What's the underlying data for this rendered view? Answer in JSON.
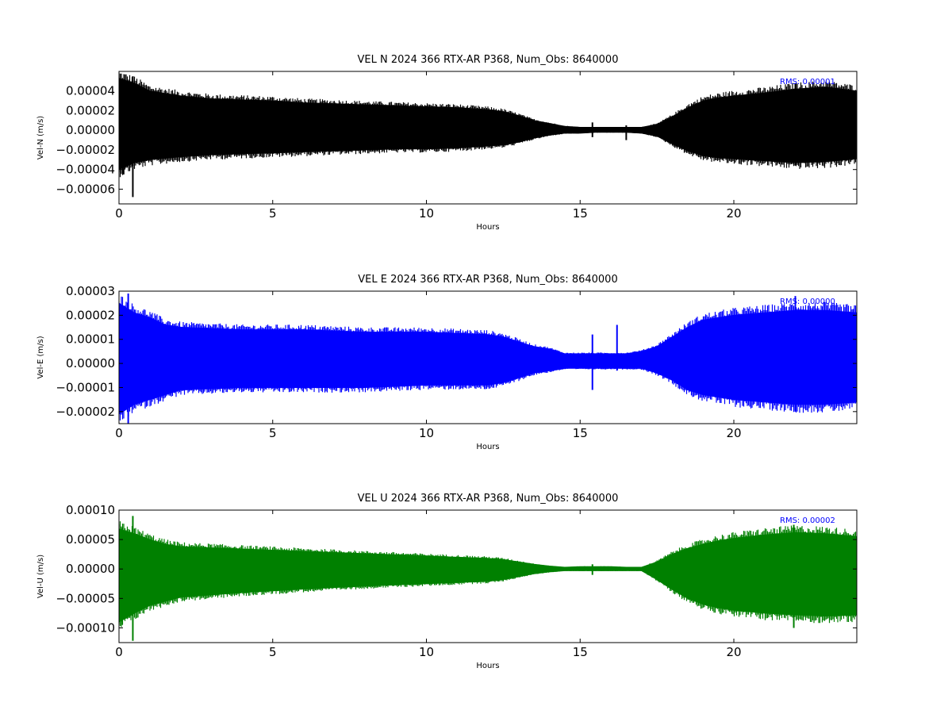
{
  "chart_data": [
    {
      "type": "line",
      "title": "VEL N 2024 366 RTX-AR  P368, Num_Obs: 8640000",
      "xlabel": "Hours",
      "ylabel": "Vel-N (m/s)",
      "xlim": [
        0,
        24
      ],
      "ylim": [
        -7.5e-05,
        6e-05
      ],
      "xticks": [
        0,
        5,
        10,
        15,
        20
      ],
      "xtick_labels": [
        "0",
        "5",
        "10",
        "15",
        "20"
      ],
      "yticks": [
        4e-05,
        2e-05,
        0.0,
        -2e-05,
        -4e-05,
        -6e-05
      ],
      "ytick_labels": [
        "0.00004",
        "0.00002",
        "0.00000",
        "−0.00002",
        "−0.00004",
        "−0.00006"
      ],
      "annotation": "RMS:  0.00001",
      "annotation_color": "#0000ff",
      "series": [
        {
          "color": "#000000",
          "x": [
            0,
            0.5,
            1,
            2,
            3,
            4,
            5,
            6,
            7,
            8,
            9,
            10,
            11,
            12,
            12.5,
            13,
            13.5,
            14,
            14.5,
            15,
            15.5,
            16,
            16.5,
            17,
            17.5,
            18,
            18.5,
            19,
            19.5,
            20,
            21,
            22,
            23,
            24
          ],
          "upper": [
            5.3e-05,
            4.8e-05,
            4e-05,
            3.5e-05,
            3.2e-05,
            3.1e-05,
            3e-05,
            2.8e-05,
            2.7e-05,
            2.6e-05,
            2.5e-05,
            2.4e-05,
            2.3e-05,
            2.1e-05,
            1.9e-05,
            1.5e-05,
            1e-05,
            7e-06,
            4e-06,
            3e-06,
            3e-06,
            3e-06,
            3e-06,
            3e-06,
            6e-06,
            1.4e-05,
            2.3e-05,
            3e-05,
            3.3e-05,
            3.5e-05,
            3.8e-05,
            4.2e-05,
            4.4e-05,
            4e-05
          ],
          "lower": [
            -4e-05,
            -3.3e-05,
            -3e-05,
            -2.7e-05,
            -2.5e-05,
            -2.4e-05,
            -2.3e-05,
            -2.2e-05,
            -2.1e-05,
            -2e-05,
            -1.9e-05,
            -1.9e-05,
            -1.8e-05,
            -1.6e-05,
            -1.5e-05,
            -1.2e-05,
            -8e-06,
            -5e-06,
            -3e-06,
            -3e-06,
            -2e-06,
            -2e-06,
            -2e-06,
            -3e-06,
            -6e-06,
            -1.4e-05,
            -2.1e-05,
            -2.6e-05,
            -2.8e-05,
            -2.9e-05,
            -3.1e-05,
            -3.3e-05,
            -3.2e-05,
            -2.9e-05
          ]
        }
      ],
      "spikes": [
        {
          "x": 0.45,
          "y_min": -6.8e-05,
          "y_max": 5.5e-05
        },
        {
          "x": 0.15,
          "y_min": -4.5e-05,
          "y_max": 5.2e-05
        },
        {
          "x": 15.4,
          "y_min": -7e-06,
          "y_max": 8e-06
        },
        {
          "x": 16.5,
          "y_min": -1e-05,
          "y_max": 5e-06
        },
        {
          "x": 22.0,
          "y_min": -3.6e-05,
          "y_max": 4.8e-05
        }
      ]
    },
    {
      "type": "line",
      "title": "VEL E 2024 366 RTX-AR  P368, Num_Obs: 8640000",
      "xlabel": "Hours",
      "ylabel": "Vel-E (m/s)",
      "xlim": [
        0,
        24
      ],
      "ylim": [
        -2.5e-05,
        3e-05
      ],
      "xticks": [
        0,
        5,
        10,
        15,
        20
      ],
      "xtick_labels": [
        "0",
        "5",
        "10",
        "15",
        "20"
      ],
      "yticks": [
        3e-05,
        2e-05,
        1e-05,
        0.0,
        -1e-05,
        -2e-05
      ],
      "ytick_labels": [
        "0.00003",
        "0.00002",
        "0.00001",
        "0.00000",
        "−0.00001",
        "−0.00002"
      ],
      "annotation": "RMS:  0.00000",
      "annotation_color": "#0000ff",
      "series": [
        {
          "color": "#0000ff",
          "x": [
            0,
            0.5,
            1,
            1.5,
            2,
            4,
            6,
            8,
            10,
            12,
            12.5,
            13,
            13.5,
            14,
            14.5,
            15,
            16,
            16.5,
            17,
            17.5,
            18,
            18.5,
            19,
            19.5,
            20,
            21,
            22,
            23,
            24
          ],
          "upper": [
            2.5e-05,
            2.1e-05,
            1.9e-05,
            1.6e-05,
            1.5e-05,
            1.4e-05,
            1.4e-05,
            1.3e-05,
            1.3e-05,
            1.2e-05,
            1.1e-05,
            9e-06,
            7e-06,
            6e-06,
            4e-06,
            4e-06,
            4e-06,
            4e-06,
            5e-06,
            7e-06,
            1.1e-05,
            1.5e-05,
            1.8e-05,
            1.9e-05,
            2e-05,
            2.1e-05,
            2.2e-05,
            2.2e-05,
            2.1e-05
          ],
          "lower": [
            -2.1e-05,
            -1.7e-05,
            -1.5e-05,
            -1.3e-05,
            -1.1e-05,
            -1e-05,
            -1e-05,
            -1e-05,
            -9e-06,
            -9e-06,
            -8e-06,
            -6e-06,
            -4e-06,
            -3e-06,
            -2e-06,
            -2e-06,
            -2e-06,
            -2e-06,
            -2e-06,
            -4e-06,
            -7e-06,
            -1.1e-05,
            -1.3e-05,
            -1.4e-05,
            -1.5e-05,
            -1.6e-05,
            -1.7e-05,
            -1.7e-05,
            -1.6e-05
          ]
        }
      ],
      "spikes": [
        {
          "x": 0.3,
          "y_min": -2.5e-05,
          "y_max": 2.9e-05
        },
        {
          "x": 15.4,
          "y_min": -1.1e-05,
          "y_max": 1.2e-05
        },
        {
          "x": 16.2,
          "y_min": -3e-06,
          "y_max": 1.6e-05
        },
        {
          "x": 22.0,
          "y_min": -2e-05,
          "y_max": 2.8e-05
        }
      ]
    },
    {
      "type": "line",
      "title": "VEL U 2024 366 RTX-AR  P368, Num_Obs: 8640000",
      "xlabel": "Hours",
      "ylabel": "Vel-U (m/s)",
      "xlim": [
        0,
        24
      ],
      "ylim": [
        -0.000125,
        0.0001
      ],
      "xticks": [
        0,
        5,
        10,
        15,
        20
      ],
      "xtick_labels": [
        "0",
        "5",
        "10",
        "15",
        "20"
      ],
      "yticks": [
        0.0001,
        5e-05,
        0.0,
        -5e-05,
        -0.0001
      ],
      "ytick_labels": [
        "0.00010",
        "0.00005",
        "0.00000",
        "−0.00005",
        "−0.00010"
      ],
      "annotation": "RMS:  0.00002",
      "annotation_color": "#0000ff",
      "series": [
        {
          "color": "#008000",
          "x": [
            0,
            0.5,
            1,
            1.5,
            2,
            3,
            4,
            5,
            6,
            8,
            10,
            12,
            12.5,
            13,
            13.5,
            14,
            14.5,
            15,
            16,
            16.5,
            17,
            17.5,
            18,
            18.5,
            19,
            19.5,
            20,
            21,
            22,
            23,
            24
          ],
          "upper": [
            6.8e-05,
            6e-05,
            5e-05,
            4.2e-05,
            3.8e-05,
            3.6e-05,
            3.4e-05,
            3.2e-05,
            3e-05,
            2.6e-05,
            2.2e-05,
            1.8e-05,
            1.6e-05,
            1.2e-05,
            8e-06,
            5e-06,
            3e-06,
            4e-06,
            4e-06,
            3e-06,
            3e-06,
            1.2e-05,
            2.5e-05,
            3.5e-05,
            4.2e-05,
            4.8e-05,
            5.2e-05,
            5.8e-05,
            6.2e-05,
            6e-05,
            5.5e-05
          ],
          "lower": [
            -9e-05,
            -7.5e-05,
            -6.2e-05,
            -5.5e-05,
            -4.8e-05,
            -4.4e-05,
            -4e-05,
            -3.7e-05,
            -3.4e-05,
            -2.9e-05,
            -2.5e-05,
            -2.1e-05,
            -1.8e-05,
            -1.3e-05,
            -8e-06,
            -5e-06,
            -3e-06,
            -3e-06,
            -3e-06,
            -3e-06,
            -3e-06,
            -1.8e-05,
            -3.5e-05,
            -5e-05,
            -6e-05,
            -6.6e-05,
            -7e-05,
            -7.5e-05,
            -7.8e-05,
            -8e-05,
            -7.8e-05
          ]
        }
      ],
      "spikes": [
        {
          "x": 0.45,
          "y_min": -0.000122,
          "y_max": 9e-05
        },
        {
          "x": 0.1,
          "y_min": -9.5e-05,
          "y_max": 7e-05
        },
        {
          "x": 15.4,
          "y_min": -1e-05,
          "y_max": 8e-06
        },
        {
          "x": 21.95,
          "y_min": -0.0001,
          "y_max": 7.5e-05
        }
      ]
    }
  ]
}
